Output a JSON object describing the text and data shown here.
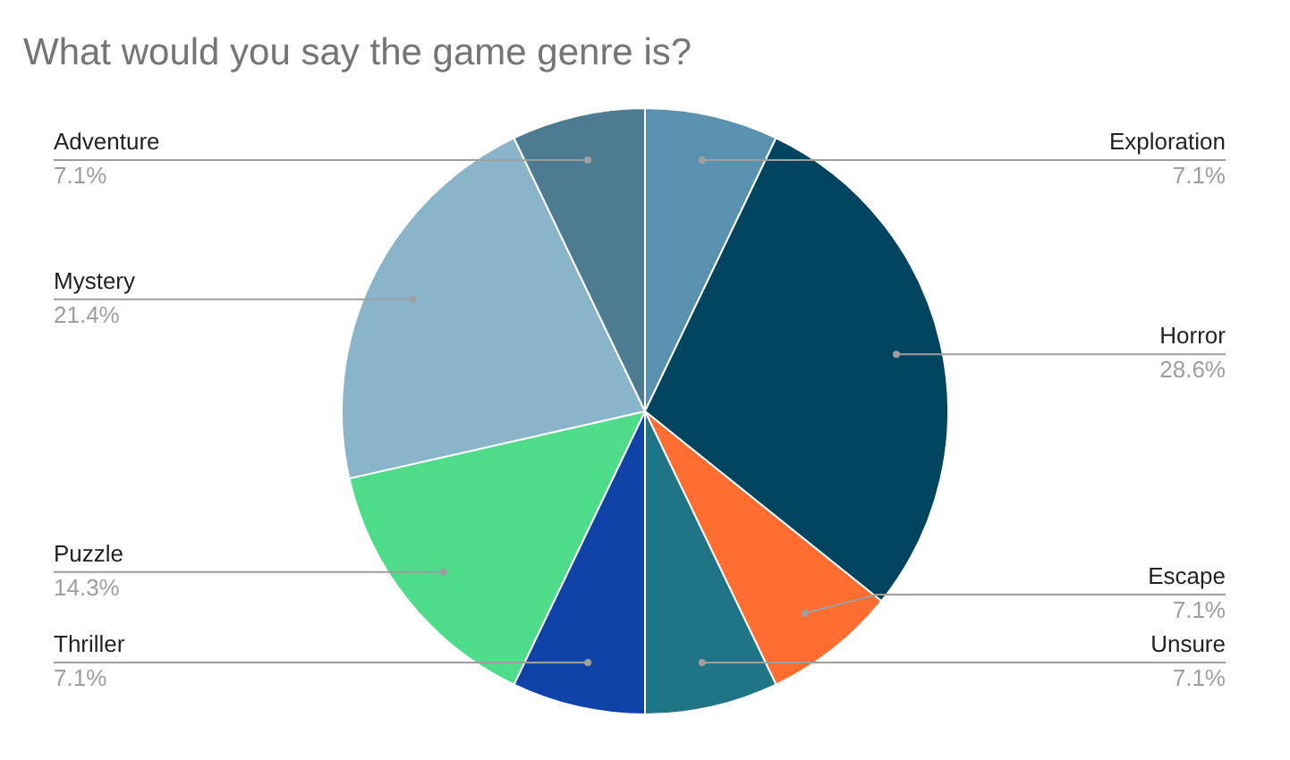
{
  "chart_data": {
    "type": "pie",
    "title": "What would you say the game genre is?",
    "categories": [
      "Exploration",
      "Horror",
      "Escape",
      "Unsure",
      "Thriller",
      "Puzzle",
      "Mystery",
      "Adventure"
    ],
    "values": [
      7.1,
      28.6,
      7.1,
      7.1,
      7.1,
      14.3,
      21.4,
      7.1
    ],
    "colors": [
      "#5a91ae",
      "#00445f",
      "#ff6d31",
      "#1f7585",
      "#1043a8",
      "#4fdc8a",
      "#8ab4c9",
      "#4d7b92"
    ],
    "value_labels": [
      "7.1%",
      "28.6%",
      "7.1%",
      "7.1%",
      "7.1%",
      "14.3%",
      "21.4%",
      "7.1%"
    ],
    "legend": false
  }
}
